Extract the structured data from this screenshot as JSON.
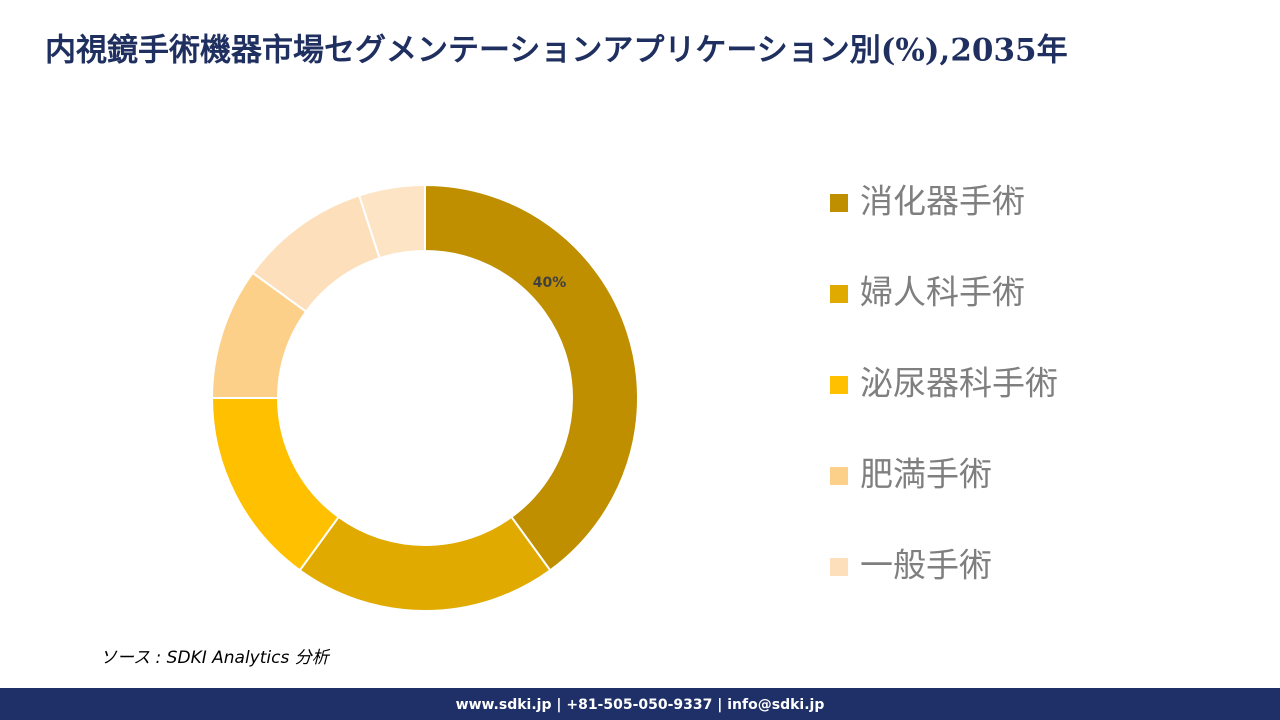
{
  "chart_data": {
    "type": "donut",
    "title": "内視鏡手術機器市場セグメンテーションアプリケーション別(%),2035年",
    "categories": [
      "消化器手術",
      "婦人科手術",
      "泌尿器科手術",
      "肥満手術",
      "一般手術",
      null
    ],
    "values": [
      40,
      20,
      15,
      10,
      10,
      5
    ],
    "value_labels": [
      "40%",
      null,
      null,
      null,
      null,
      null
    ],
    "colors": [
      "#bf8f00",
      "#e0aa00",
      "#ffc000",
      "#fdd08a",
      "#fde0bb",
      "#fde4c4"
    ]
  },
  "source": "ソース : SDKI Analytics 分析",
  "footer": "www.sdki.jp | +81-505-050-9337 | info@sdki.jp"
}
